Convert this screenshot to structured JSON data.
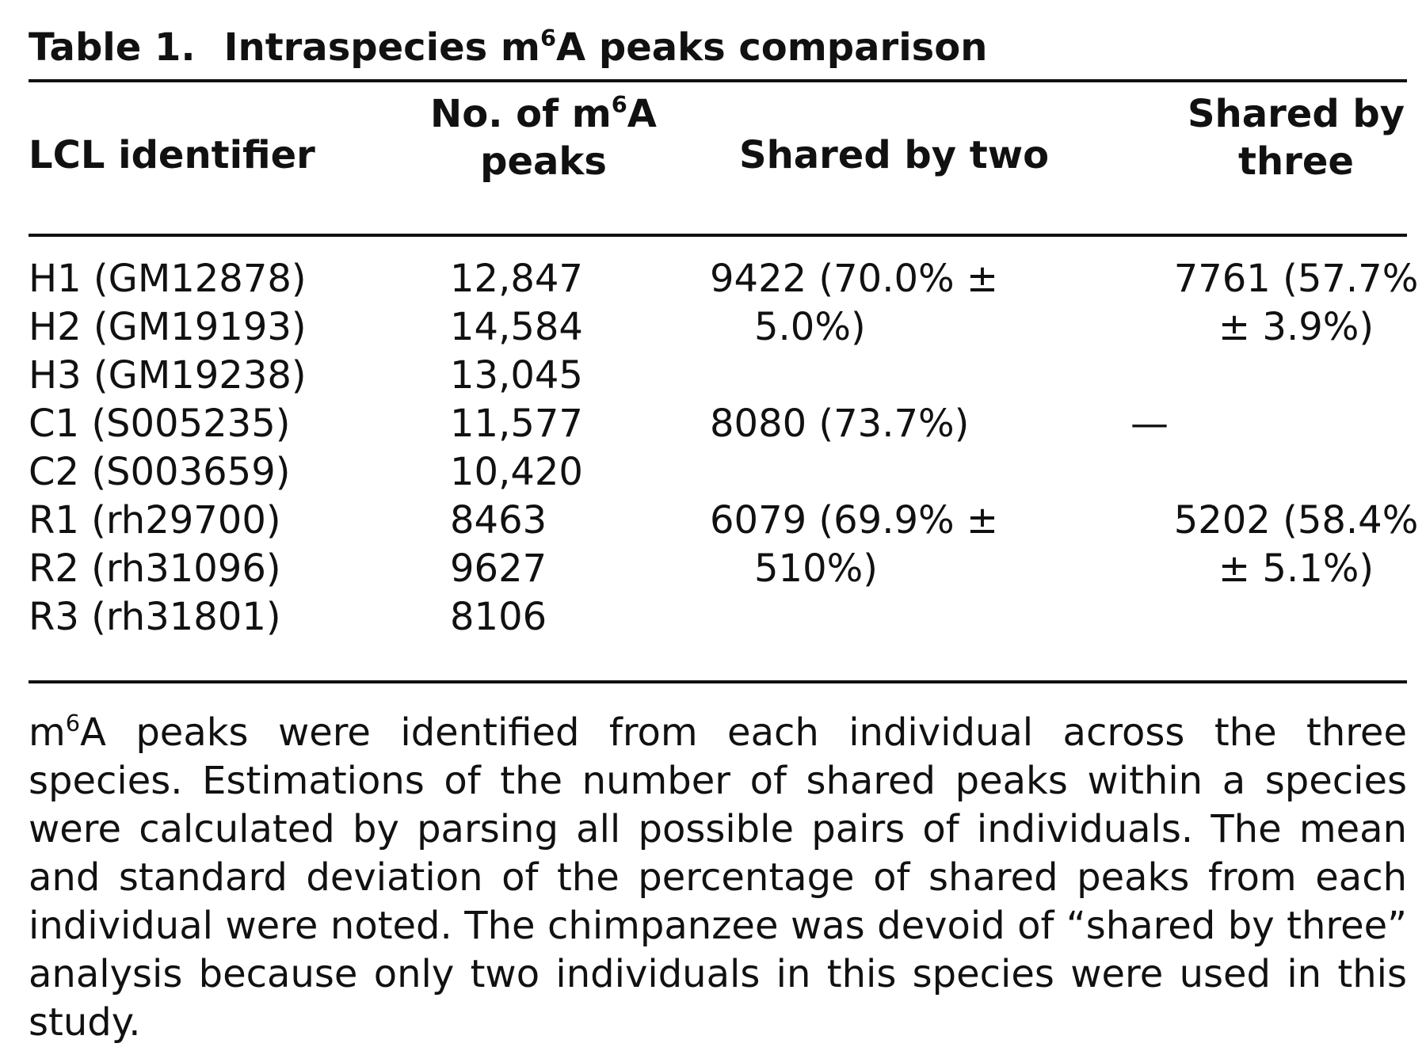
{
  "table": {
    "caption": {
      "label": "Table 1.",
      "title_pre": "Intraspecies m",
      "title_sup": "6",
      "title_post": "A peaks comparison"
    },
    "columns": {
      "identifier": "LCL identifier",
      "peaks_line1_pre": "No. of m",
      "peaks_line1_sup": "6",
      "peaks_line1_post": "A",
      "peaks_line2": "peaks",
      "shared_two": "Shared by two",
      "shared_three_line1": "Shared by",
      "shared_three_line2": "three"
    },
    "rows": [
      {
        "id": "H1 (GM12878)",
        "peaks": "12,847"
      },
      {
        "id": "H2 (GM19193)",
        "peaks": "14,584"
      },
      {
        "id": "H3 (GM19238)",
        "peaks": "13,045"
      },
      {
        "id": "C1 (S005235)",
        "peaks": "11,577"
      },
      {
        "id": "C2 (S003659)",
        "peaks": "10,420"
      },
      {
        "id": "R1 (rh29700)",
        "peaks": "8463"
      },
      {
        "id": "R2 (rh31096)",
        "peaks": "9627"
      },
      {
        "id": "R3 (rh31801)",
        "peaks": "8106"
      }
    ],
    "groups": [
      {
        "shared_two_line1": "9422 (70.0% ±",
        "shared_two_line2": "5.0%)",
        "shared_three_line1": "7761 (57.7%",
        "shared_three_line2": "± 3.9%)"
      },
      {
        "shared_two_line1": "8080 (73.7%)",
        "shared_two_line2": "",
        "shared_three_line1": "—",
        "shared_three_line2": ""
      },
      {
        "shared_two_line1": "6079 (69.9% ±",
        "shared_two_line2": "510%)",
        "shared_three_line1": "5202 (58.4%",
        "shared_three_line2": "± 5.1%)"
      }
    ],
    "footnote": {
      "sup_prefix_base": "m",
      "sup_prefix_sup": "6",
      "text": "A peaks were identified from each individual across the three species. Estimations of the number of shared peaks within a species were calculated by parsing all possible pairs of individuals. The mean and standard deviation of the percentage of shared peaks from each individual were noted. The chimpanzee was devoid of “shared by three” analysis because only two individuals in this species were used in this study."
    }
  }
}
